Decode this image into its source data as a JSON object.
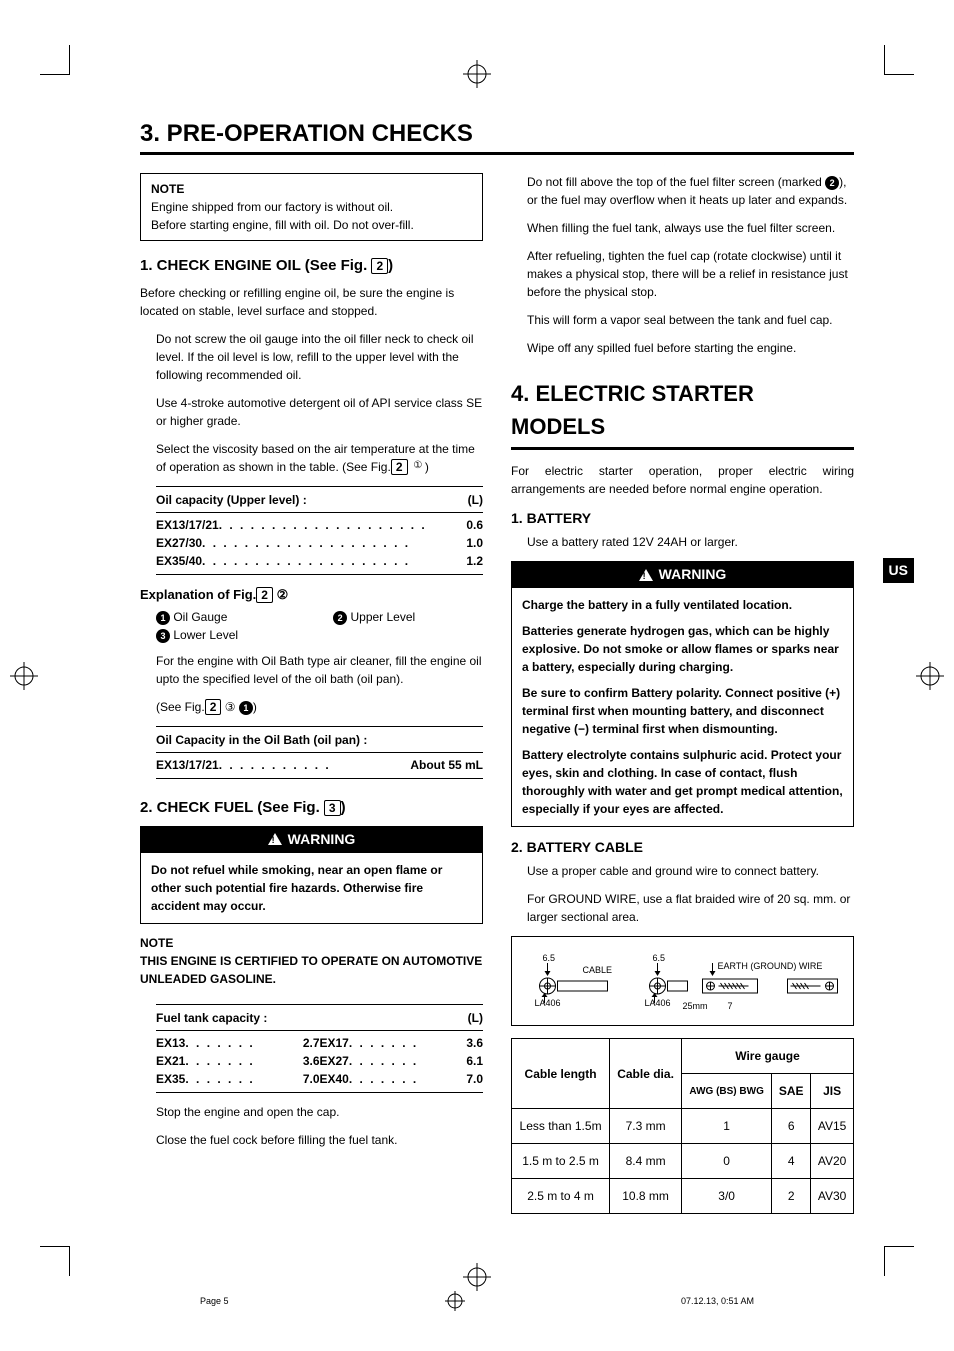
{
  "headings": {
    "section3": "3. PRE-OPERATION CHECKS",
    "section4": "4. ELECTRIC STARTER MODELS",
    "check_oil": "1. CHECK ENGINE OIL (See Fig. ",
    "check_oil_fig": "2",
    "check_oil_close": ")",
    "check_fuel": "2. CHECK FUEL (See Fig. ",
    "check_fuel_fig": "3",
    "check_fuel_close": ")",
    "battery": "1. BATTERY",
    "battery_cable": "2. BATTERY CABLE",
    "explain": "Explanation of Fig.",
    "explain_fig": "2",
    "explain_circ": "②"
  },
  "note1": {
    "label": "NOTE",
    "l1": "Engine shipped from our factory is without oil.",
    "l2": "Before starting engine, fill with oil. Do not over-fill."
  },
  "oil_intro": "Before checking or refilling engine oil, be sure the engine is located on stable, level surface and stopped.",
  "oil_p1": "Do not screw the oil gauge into the oil filler neck to check oil level. If the oil level is low, refill to the upper level with the following recommended oil.",
  "oil_p2": "Use 4-stroke automotive detergent oil of API service class SE or higher grade.",
  "oil_p3_a": "Select the viscosity based on the air temperature at the time of operation as shown in the table. (See Fig.",
  "oil_p3_fig": "2",
  "oil_p3_circ": "①",
  "oil_p3_b": ")",
  "oil_cap_hdr": "Oil capacity (Upper level) :",
  "oil_cap_unit": "(L)",
  "oil_rows": [
    {
      "m": "EX13/17/21",
      "v": "0.6"
    },
    {
      "m": "EX27/30",
      "v": "1.0"
    },
    {
      "m": "EX35/40",
      "v": "1.2"
    }
  ],
  "explain_items": {
    "a": "Oil Gauge",
    "b": "Upper Level",
    "c": "Lower Level"
  },
  "oilbath_p": "For the engine with Oil Bath type air cleaner, fill the engine oil upto the specified level of the oil bath (oil pan).",
  "oilbath_see_a": "(See Fig.",
  "oilbath_fig": "2",
  "oilbath_circ": "③",
  "oilbath_bullet": "❶",
  "oilbath_see_b": ")",
  "oilbath_cap_hdr": "Oil Capacity in the Oil Bath (oil pan) :",
  "oilbath_row": {
    "m": "EX13/17/21",
    "v": "About 55 mL"
  },
  "warning_label": "WARNING",
  "fuel_warning": "Do not refuel while smoking, near an open flame or other such potential fire hazards. Otherwise fire accident may occur.",
  "note2": {
    "label": "NOTE",
    "l1": "THIS ENGINE IS CERTIFIED TO OPERATE ON AUTOMOTIVE UNLEADED GASOLINE."
  },
  "fuel_cap_hdr": "Fuel tank capacity :",
  "fuel_cap_unit": "(L)",
  "fuel_rows_l": [
    {
      "m": "EX13",
      "v": "2.7"
    },
    {
      "m": "EX21",
      "v": "3.6"
    },
    {
      "m": "EX35",
      "v": "7.0"
    }
  ],
  "fuel_rows_r": [
    {
      "m": "EX17",
      "v": "3.6"
    },
    {
      "m": "EX27",
      "v": "6.1"
    },
    {
      "m": "EX40",
      "v": "7.0"
    }
  ],
  "fuel_p1": "Stop the engine and open the cap.",
  "fuel_p2": "Close the fuel cock before filling the fuel tank.",
  "right_paras": {
    "r1a": "Do not fill above the top of the fuel filter screen (marked ",
    "r1mark": "❷",
    "r1b": "), or the fuel may overflow when it heats up later and expands.",
    "r2": "When filling the fuel tank, always use the fuel filter screen.",
    "r3": "After refueling, tighten the fuel cap (rotate clockwise) until it makes a physical stop, there will be a relief in resistance just before the physical stop.",
    "r4": "This will form a vapor seal between the tank and fuel cap.",
    "r5": "Wipe off any spilled fuel before starting the engine."
  },
  "sec4_intro": "For electric starter operation, proper electric wiring arrangements are needed before normal engine operation.",
  "battery_p": "Use a battery rated 12V  24AH or larger.",
  "battery_warning": {
    "w1": "Charge the battery in a fully ventilated location.",
    "w2": "Batteries generate hydrogen gas, which can be highly explosive. Do not smoke or allow flames or sparks near a battery, especially during charging.",
    "w3": "Be sure to confirm Battery polarity. Connect positive (+) terminal first when mounting battery, and disconnect negative (−) terminal first when dismounting.",
    "w4": "Battery electrolyte contains sulphuric acid. Protect your eyes, skin and clothing. In case of contact, flush thoroughly with water and get prompt medical attention, especially if your eyes are affected."
  },
  "cable_p1": "Use a proper cable and ground wire to connect battery.",
  "cable_p2": "For GROUND WIRE, use a flat braided wire of 20 sq. mm. or larger sectional area.",
  "diagram": {
    "d65a": "6.5",
    "d65b": "6.5",
    "cable": "CABLE",
    "earth": "EARTH (GROUND) WIRE",
    "la406a": "LA406",
    "la406b": "LA406",
    "d25": "25mm",
    "d7": "7"
  },
  "wire_table": {
    "h_len": "Cable length",
    "h_dia": "Cable dia.",
    "h_gauge": "Wire gauge",
    "h_awg": "AWG (BS) BWG",
    "h_sae": "SAE",
    "h_jis": "JIS",
    "rows": [
      {
        "len": "Less than 1.5m",
        "dia": "7.3 mm",
        "awg": "1",
        "sae": "6",
        "jis": "AV15"
      },
      {
        "len": "1.5 m to 2.5 m",
        "dia": "8.4 mm",
        "awg": "0",
        "sae": "4",
        "jis": "AV20"
      },
      {
        "len": "2.5 m to 4 m",
        "dia": "10.8 mm",
        "awg": "3/0",
        "sae": "2",
        "jis": "AV30"
      }
    ]
  },
  "us_tab": "US",
  "footer": {
    "page": "Page 5",
    "ts": "07.12.13, 0:51 AM"
  }
}
